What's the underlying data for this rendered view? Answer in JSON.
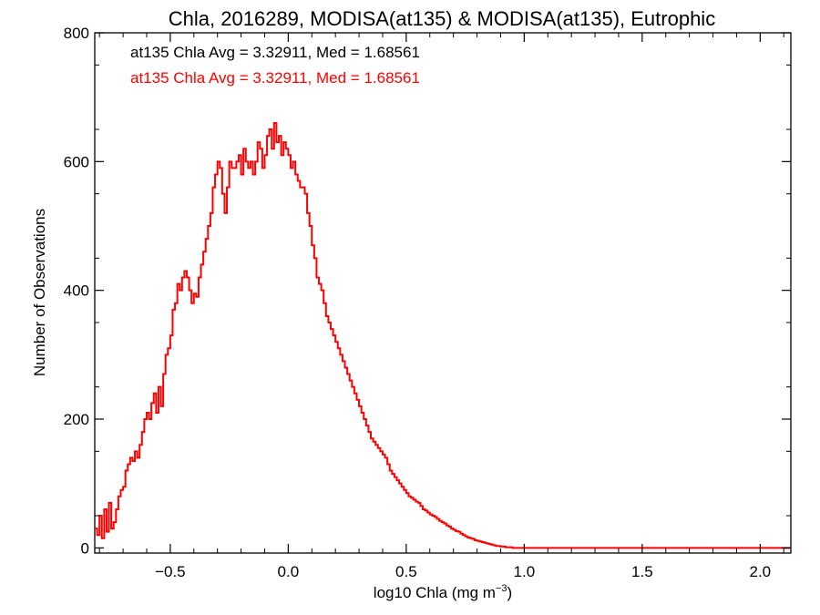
{
  "chart_data": {
    "type": "histogram-step",
    "title": "Chla, 2016289, MODISA(at135) & MODISA(at135), Eutrophic",
    "xlabel": "log10 Chla (mg m",
    "xlabel_sup": "−3",
    "xlabel_suffix": ")",
    "ylabel": "Number of Observations",
    "xlim": [
      -0.82,
      2.13
    ],
    "ylim": [
      -8,
      800
    ],
    "xticks": [
      -0.5,
      0.0,
      0.5,
      1.0,
      1.5,
      2.0
    ],
    "xtick_labels": [
      "−0.5",
      "0.0",
      "0.5",
      "1.0",
      "1.5",
      "2.0"
    ],
    "yticks": [
      0,
      200,
      400,
      600,
      800
    ],
    "ytick_labels": [
      "0",
      "200",
      "400",
      "600",
      "800"
    ],
    "annotations": [
      {
        "text": "at135 Chla Avg = 3.32911, Med = 1.68561",
        "color": "#000000"
      },
      {
        "text": "at135 Chla Avg = 3.32911, Med = 1.68561",
        "color": "#ff0000"
      }
    ],
    "series": [
      {
        "color": "#ff0000",
        "bin_start": -0.82,
        "bin_width": 0.01,
        "values": [
          30,
          20,
          50,
          15,
          60,
          25,
          70,
          30,
          40,
          60,
          80,
          90,
          95,
          120,
          130,
          140,
          135,
          150,
          140,
          160,
          180,
          200,
          210,
          200,
          225,
          240,
          210,
          250,
          220,
          270,
          300,
          310,
          330,
          370,
          380,
          410,
          400,
          420,
          430,
          420,
          400,
          380,
          395,
          390,
          420,
          440,
          460,
          480,
          500,
          520,
          560,
          580,
          600,
          590,
          550,
          520,
          560,
          600,
          590,
          590,
          600,
          610,
          580,
          620,
          600,
          590,
          600,
          580,
          600,
          630,
          620,
          590,
          610,
          640,
          650,
          620,
          660,
          630,
          640,
          610,
          630,
          620,
          610,
          590,
          600,
          580,
          570,
          560,
          560,
          550,
          520,
          500,
          470,
          450,
          420,
          410,
          400,
          380,
          360,
          350,
          340,
          330,
          320,
          310,
          300,
          290,
          280,
          270,
          260,
          250,
          240,
          230,
          220,
          210,
          200,
          190,
          180,
          170,
          165,
          160,
          155,
          150,
          145,
          140,
          130,
          120,
          115,
          110,
          105,
          100,
          95,
          90,
          85,
          80,
          78,
          75,
          72,
          70,
          65,
          60,
          58,
          55,
          52,
          50,
          48,
          45,
          42,
          40,
          38,
          35,
          33,
          30,
          28,
          26,
          25,
          22,
          20,
          18,
          16,
          15,
          14,
          12,
          11,
          10,
          9,
          8,
          7,
          6,
          5,
          4,
          3,
          3,
          2,
          2,
          1,
          1,
          1,
          0,
          0,
          0,
          0,
          0,
          0,
          0,
          0,
          0,
          0,
          0,
          0,
          0,
          0,
          0,
          0,
          0,
          0,
          0,
          0,
          0,
          0,
          0,
          0,
          0,
          0,
          0,
          0,
          0,
          0,
          0,
          0,
          0,
          0,
          0,
          0,
          0,
          0,
          0,
          0,
          0,
          0,
          0,
          0,
          0,
          0,
          0,
          0,
          0,
          0,
          0,
          0,
          0,
          0,
          0,
          0,
          0,
          0,
          0,
          0,
          0,
          0,
          0,
          0,
          0,
          0,
          0,
          0,
          0,
          0,
          0,
          0,
          0,
          0,
          0,
          0,
          0,
          0,
          0,
          0,
          0,
          0,
          0,
          0,
          0,
          0,
          0,
          0,
          0,
          0,
          0,
          0,
          0,
          0,
          0,
          0,
          0,
          0,
          0,
          0,
          0,
          0,
          0,
          0,
          0,
          0,
          0,
          0,
          0,
          0,
          0,
          0,
          0,
          0,
          0,
          0,
          0,
          0
        ]
      }
    ]
  }
}
